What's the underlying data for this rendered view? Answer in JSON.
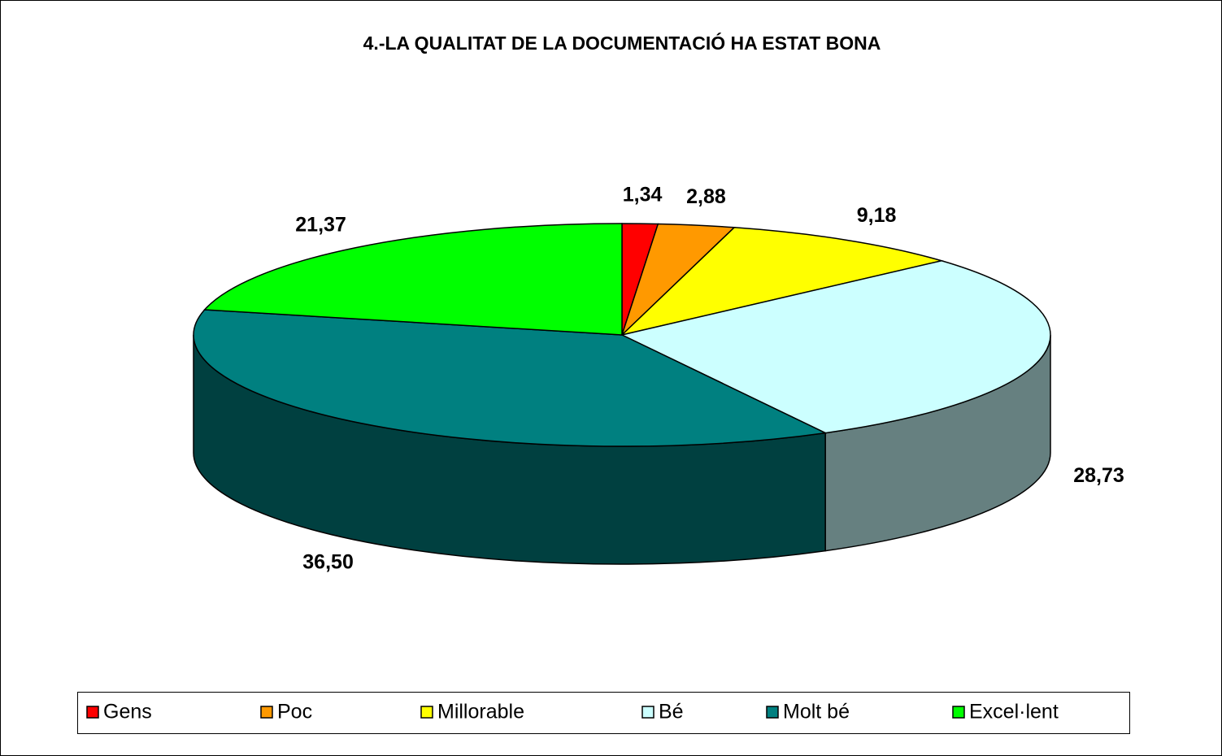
{
  "chart_data": {
    "type": "pie",
    "title": "4.-LA QUALITAT DE LA DOCUMENTACIÓ HA ESTAT BONA",
    "categories": [
      "Gens",
      "Poc",
      "Millorable",
      "Bé",
      "Molt bé",
      "Excel·lent"
    ],
    "values": [
      1.34,
      2.88,
      9.18,
      28.73,
      36.5,
      21.37
    ],
    "value_labels": [
      "1,34",
      "2,88",
      "9,18",
      "28,73",
      "36,50",
      "21,37"
    ],
    "colors": [
      "#ff0000",
      "#ff9900",
      "#ffff00",
      "#ccffff",
      "#008080",
      "#00ff00"
    ],
    "legend": "bottom"
  }
}
